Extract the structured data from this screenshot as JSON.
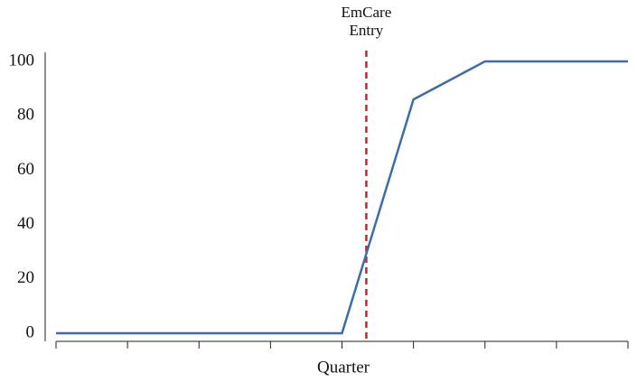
{
  "chart_data": {
    "type": "line",
    "x_label": "Quarter",
    "categories": [
      null,
      null,
      null,
      null,
      null,
      null,
      null,
      null,
      null
    ],
    "series": [
      {
        "color": "#3b6ea8",
        "values": [
          0,
          0,
          0,
          0,
          0,
          86,
          100,
          100,
          100
        ]
      }
    ],
    "ylim": [
      0,
      100
    ],
    "yticks": [
      0,
      20,
      40,
      60,
      80,
      100
    ],
    "annotations": [
      {
        "lines": [
          "EmCare",
          "Entry"
        ],
        "x": 4.34,
        "color": "#c0282d"
      }
    ]
  }
}
